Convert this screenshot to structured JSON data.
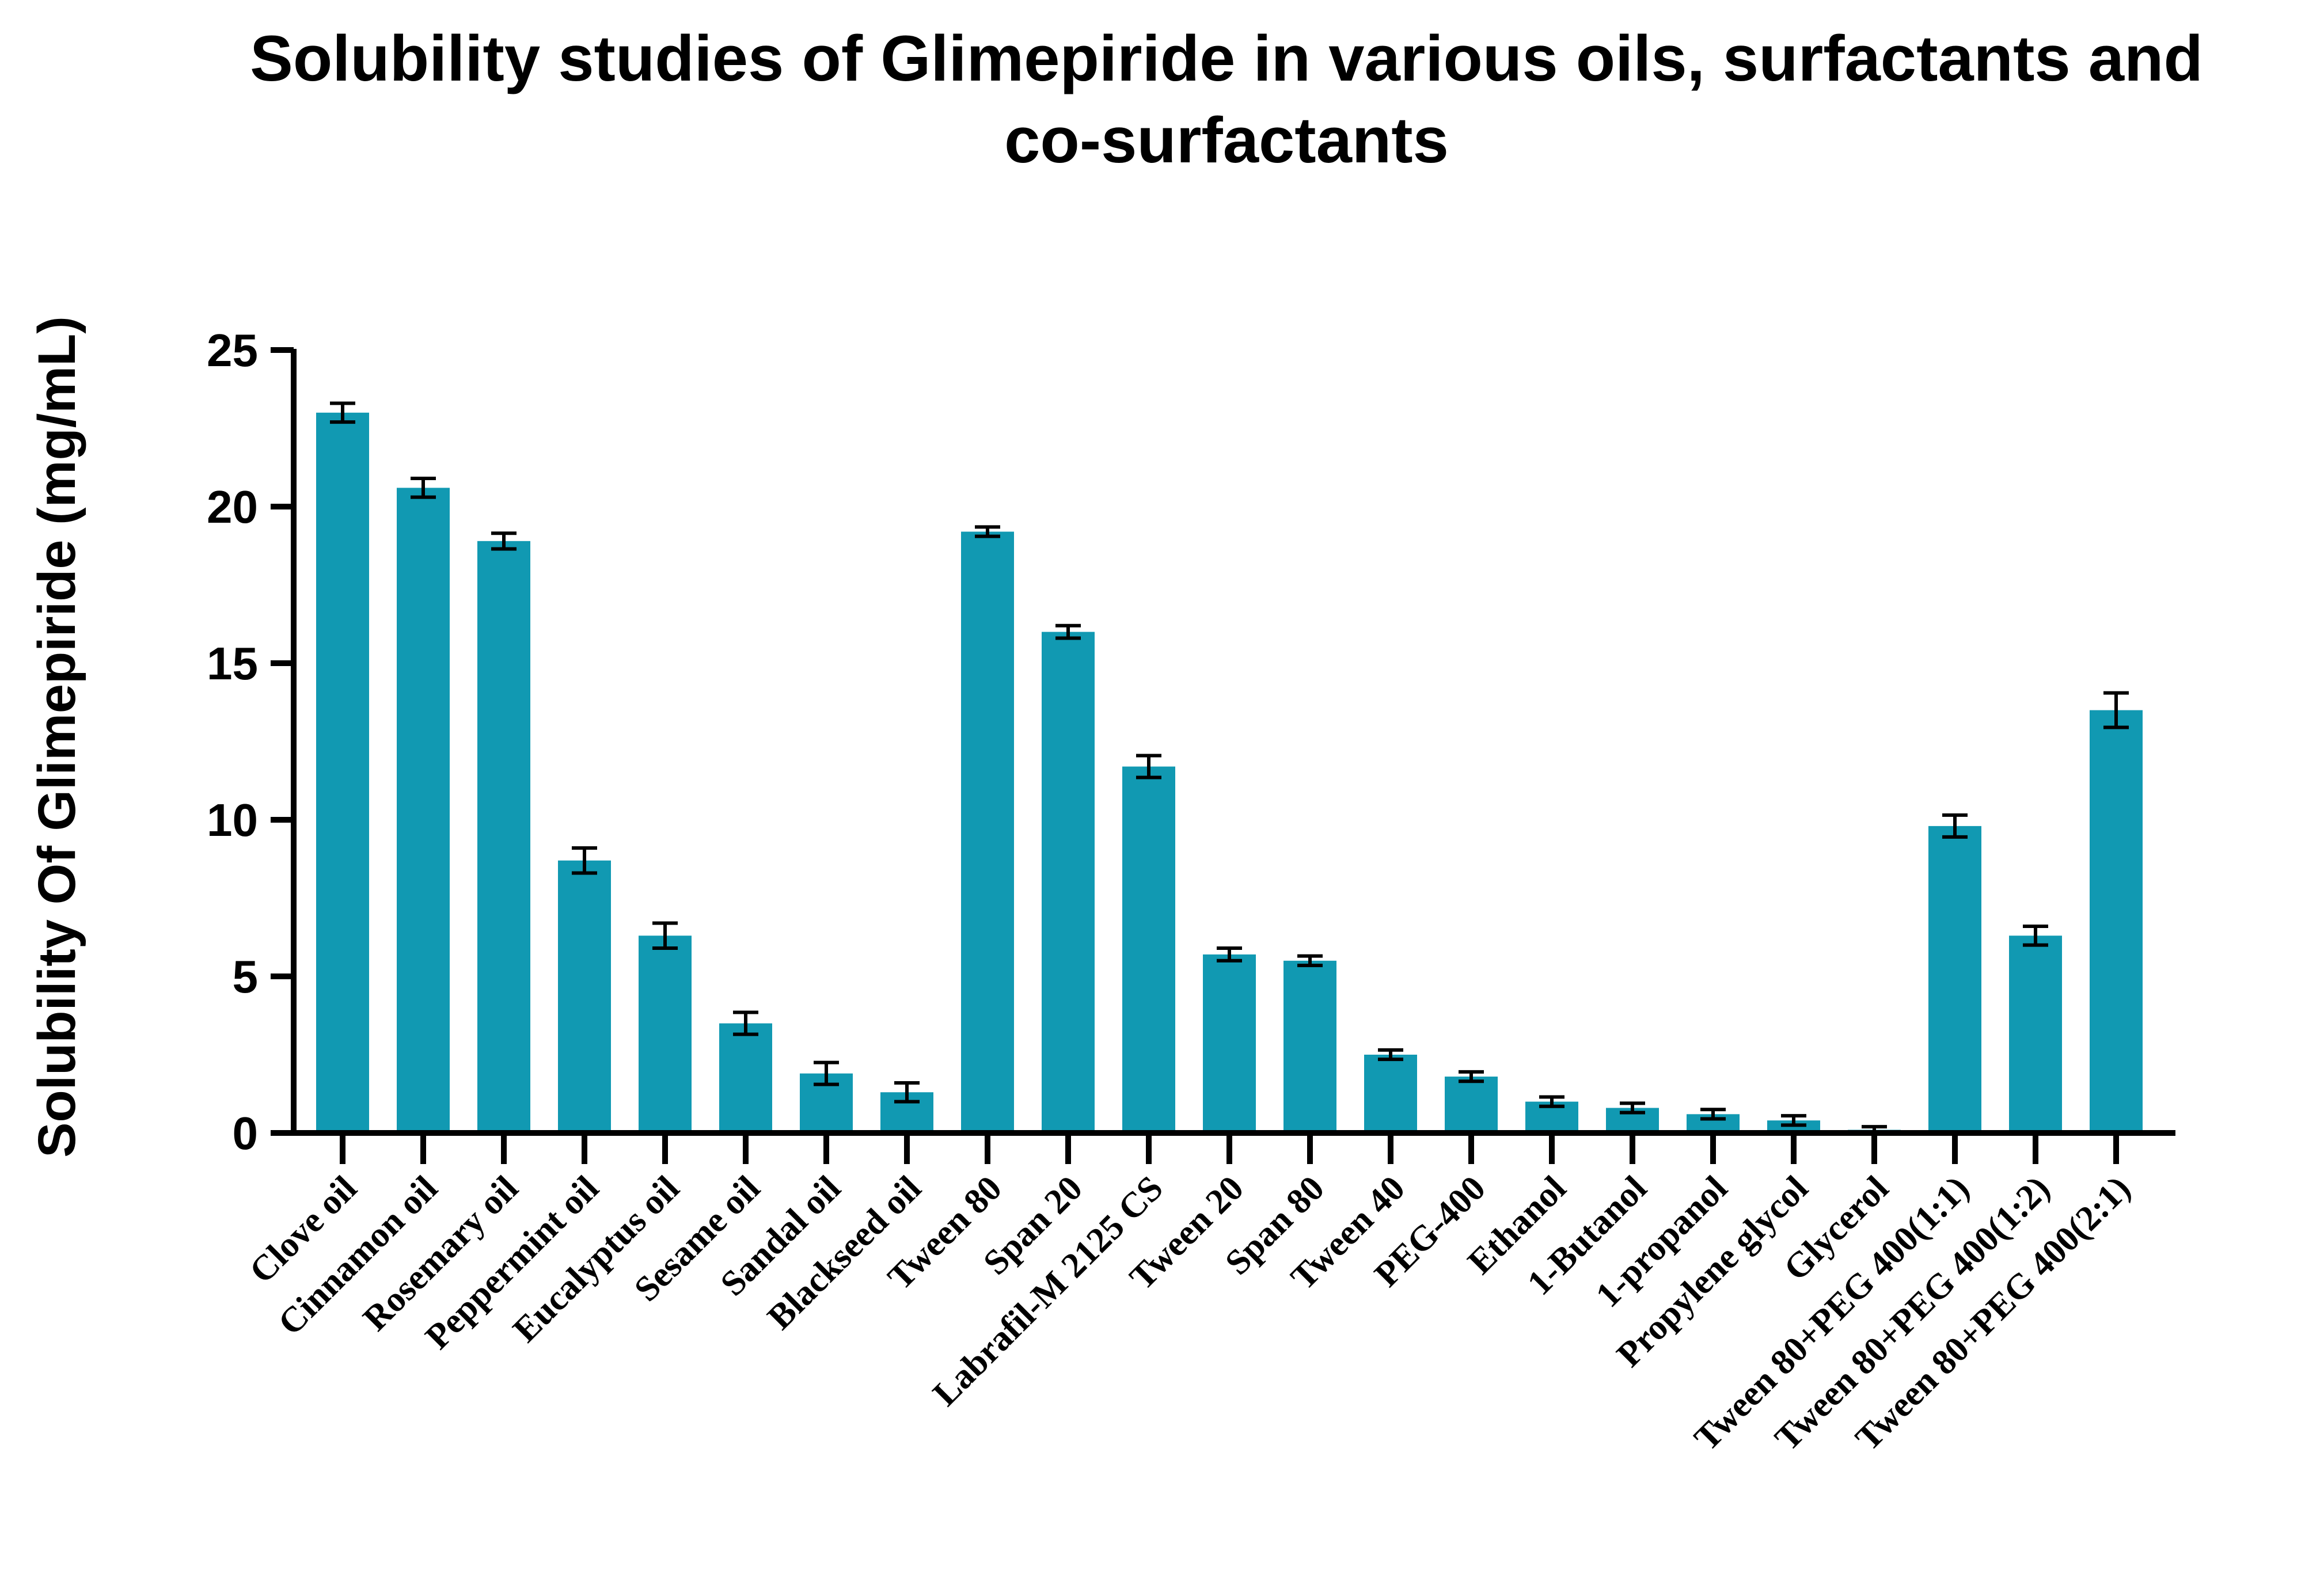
{
  "chart_data": {
    "type": "bar",
    "title_lines": [
      "Solubility studies of Glimepiride in various oils, surfactants and",
      "co-surfactants"
    ],
    "xlabel": "",
    "ylabel": "Solubility Of Glimepiride (mg/mL)",
    "ylim": [
      0,
      25
    ],
    "yticks": [
      0,
      5,
      10,
      15,
      20,
      25
    ],
    "grid": false,
    "legend": "none",
    "bar_color": "#1199b2",
    "categories": [
      "Clove oil",
      "Cinnamon oil",
      "Rosemary oil",
      "Peppermint oil",
      "Eucalyptus oil",
      "Sesame oil",
      "Sandal oil",
      "Blackseed oil",
      "Tween 80",
      "Span 20",
      "Labrafil-M 2125 CS",
      "Tween 20",
      "Span 80",
      "Tween 40",
      "PEG-400",
      "Ethanol",
      "1-Butanol",
      "1-propanol",
      "Propylene glycol",
      "Glycerol",
      "Tween 80+PEG 400(1:1)",
      "Tween 80+PEG 400(1:2)",
      "Tween 80+PEG 400(2:1)"
    ],
    "values": [
      23.0,
      20.6,
      18.9,
      8.7,
      6.3,
      3.5,
      1.9,
      1.3,
      19.2,
      16.0,
      11.7,
      5.7,
      5.5,
      2.5,
      1.8,
      1.0,
      0.8,
      0.6,
      0.4,
      0.1,
      9.8,
      6.3,
      13.5
    ],
    "errors": [
      0.3,
      0.3,
      0.25,
      0.4,
      0.4,
      0.35,
      0.35,
      0.3,
      0.15,
      0.2,
      0.35,
      0.2,
      0.15,
      0.15,
      0.15,
      0.15,
      0.15,
      0.15,
      0.15,
      0.1,
      0.35,
      0.3,
      0.55
    ]
  }
}
